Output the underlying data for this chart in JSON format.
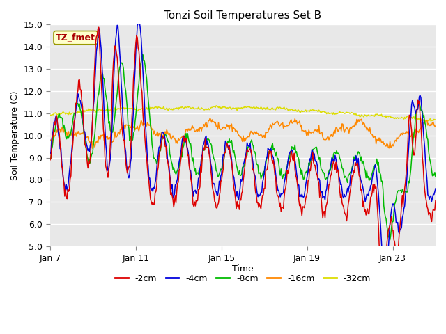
{
  "title": "Tonzi Soil Temperatures Set B",
  "xlabel": "Time",
  "ylabel": "Soil Temperature (C)",
  "ylim": [
    5.0,
    15.0
  ],
  "yticks": [
    5.0,
    6.0,
    7.0,
    8.0,
    9.0,
    10.0,
    11.0,
    12.0,
    13.0,
    14.0,
    15.0
  ],
  "xtick_labels": [
    "Jan 7",
    "Jan 11",
    "Jan 15",
    "Jan 19",
    "Jan 23"
  ],
  "xtick_positions": [
    0,
    4,
    8,
    12,
    16
  ],
  "xlim": [
    0,
    18
  ],
  "series_colors": {
    "-2cm": "#dd0000",
    "-4cm": "#0000dd",
    "-8cm": "#00bb00",
    "-16cm": "#ff8800",
    "-32cm": "#dddd00"
  },
  "series_linewidth": 1.1,
  "fig_bg_color": "#ffffff",
  "plot_bg_color": "#e8e8e8",
  "annotation_text": "TZ_fmet",
  "annotation_bg": "#ffffcc",
  "annotation_border": "#999900",
  "annotation_text_color": "#aa0000",
  "grid_color": "#ffffff",
  "n_points": 500,
  "figsize": [
    6.4,
    4.8
  ],
  "dpi": 100
}
